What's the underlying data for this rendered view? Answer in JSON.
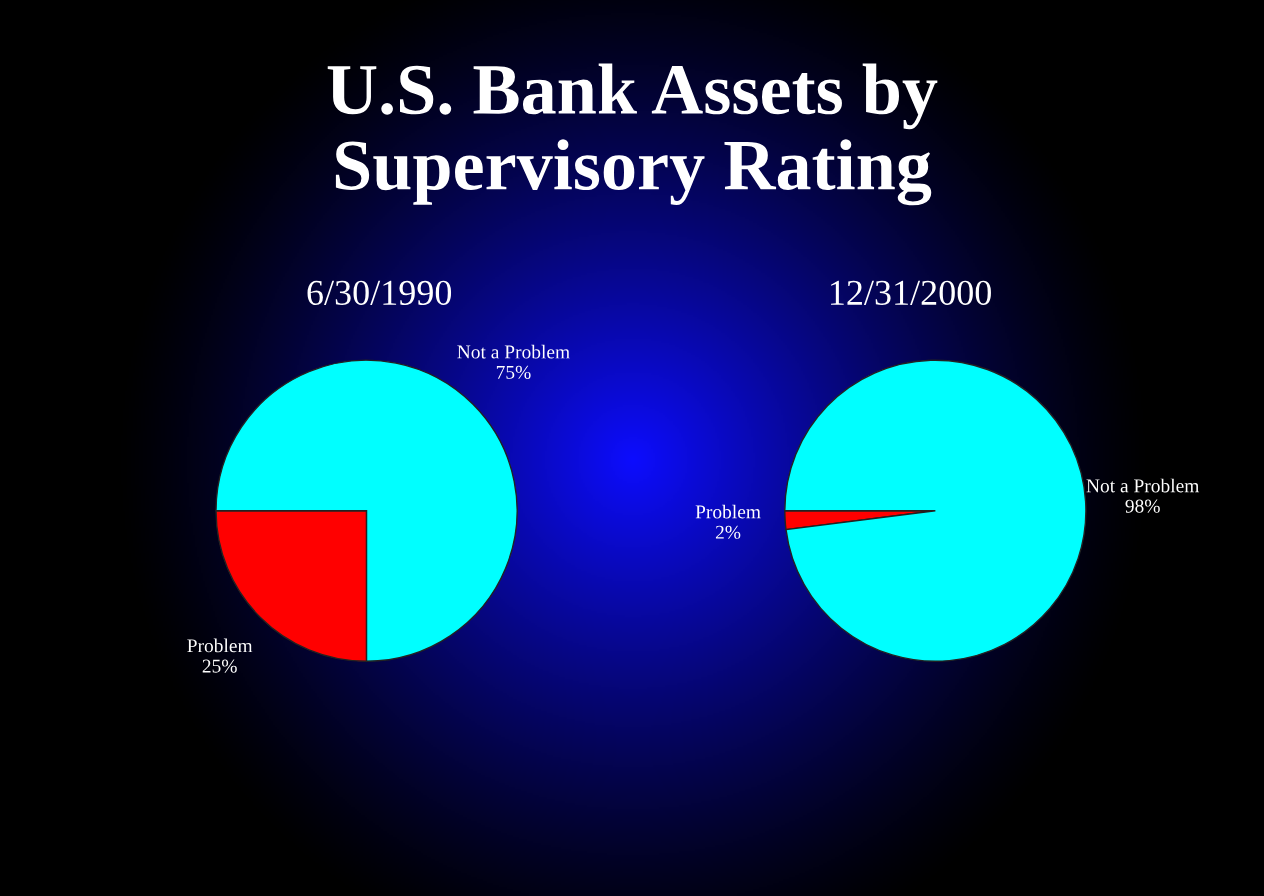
{
  "chart_data": [
    {
      "type": "pie",
      "title": "U.S. Bank Assets by Supervisory Rating",
      "subtitle": "6/30/1990",
      "categories": [
        "Problem",
        "Not a Problem"
      ],
      "values": [
        25,
        75
      ],
      "value_labels": [
        "25%",
        "75%"
      ],
      "colors": [
        "#ff0000",
        "#00ffff"
      ],
      "legend": false
    },
    {
      "type": "pie",
      "subtitle": "12/31/2000",
      "categories": [
        "Problem",
        "Not a Problem"
      ],
      "values": [
        2,
        98
      ],
      "value_labels": [
        "2%",
        "98%"
      ],
      "colors": [
        "#ff0000",
        "#00ffff"
      ],
      "legend": false
    }
  ]
}
